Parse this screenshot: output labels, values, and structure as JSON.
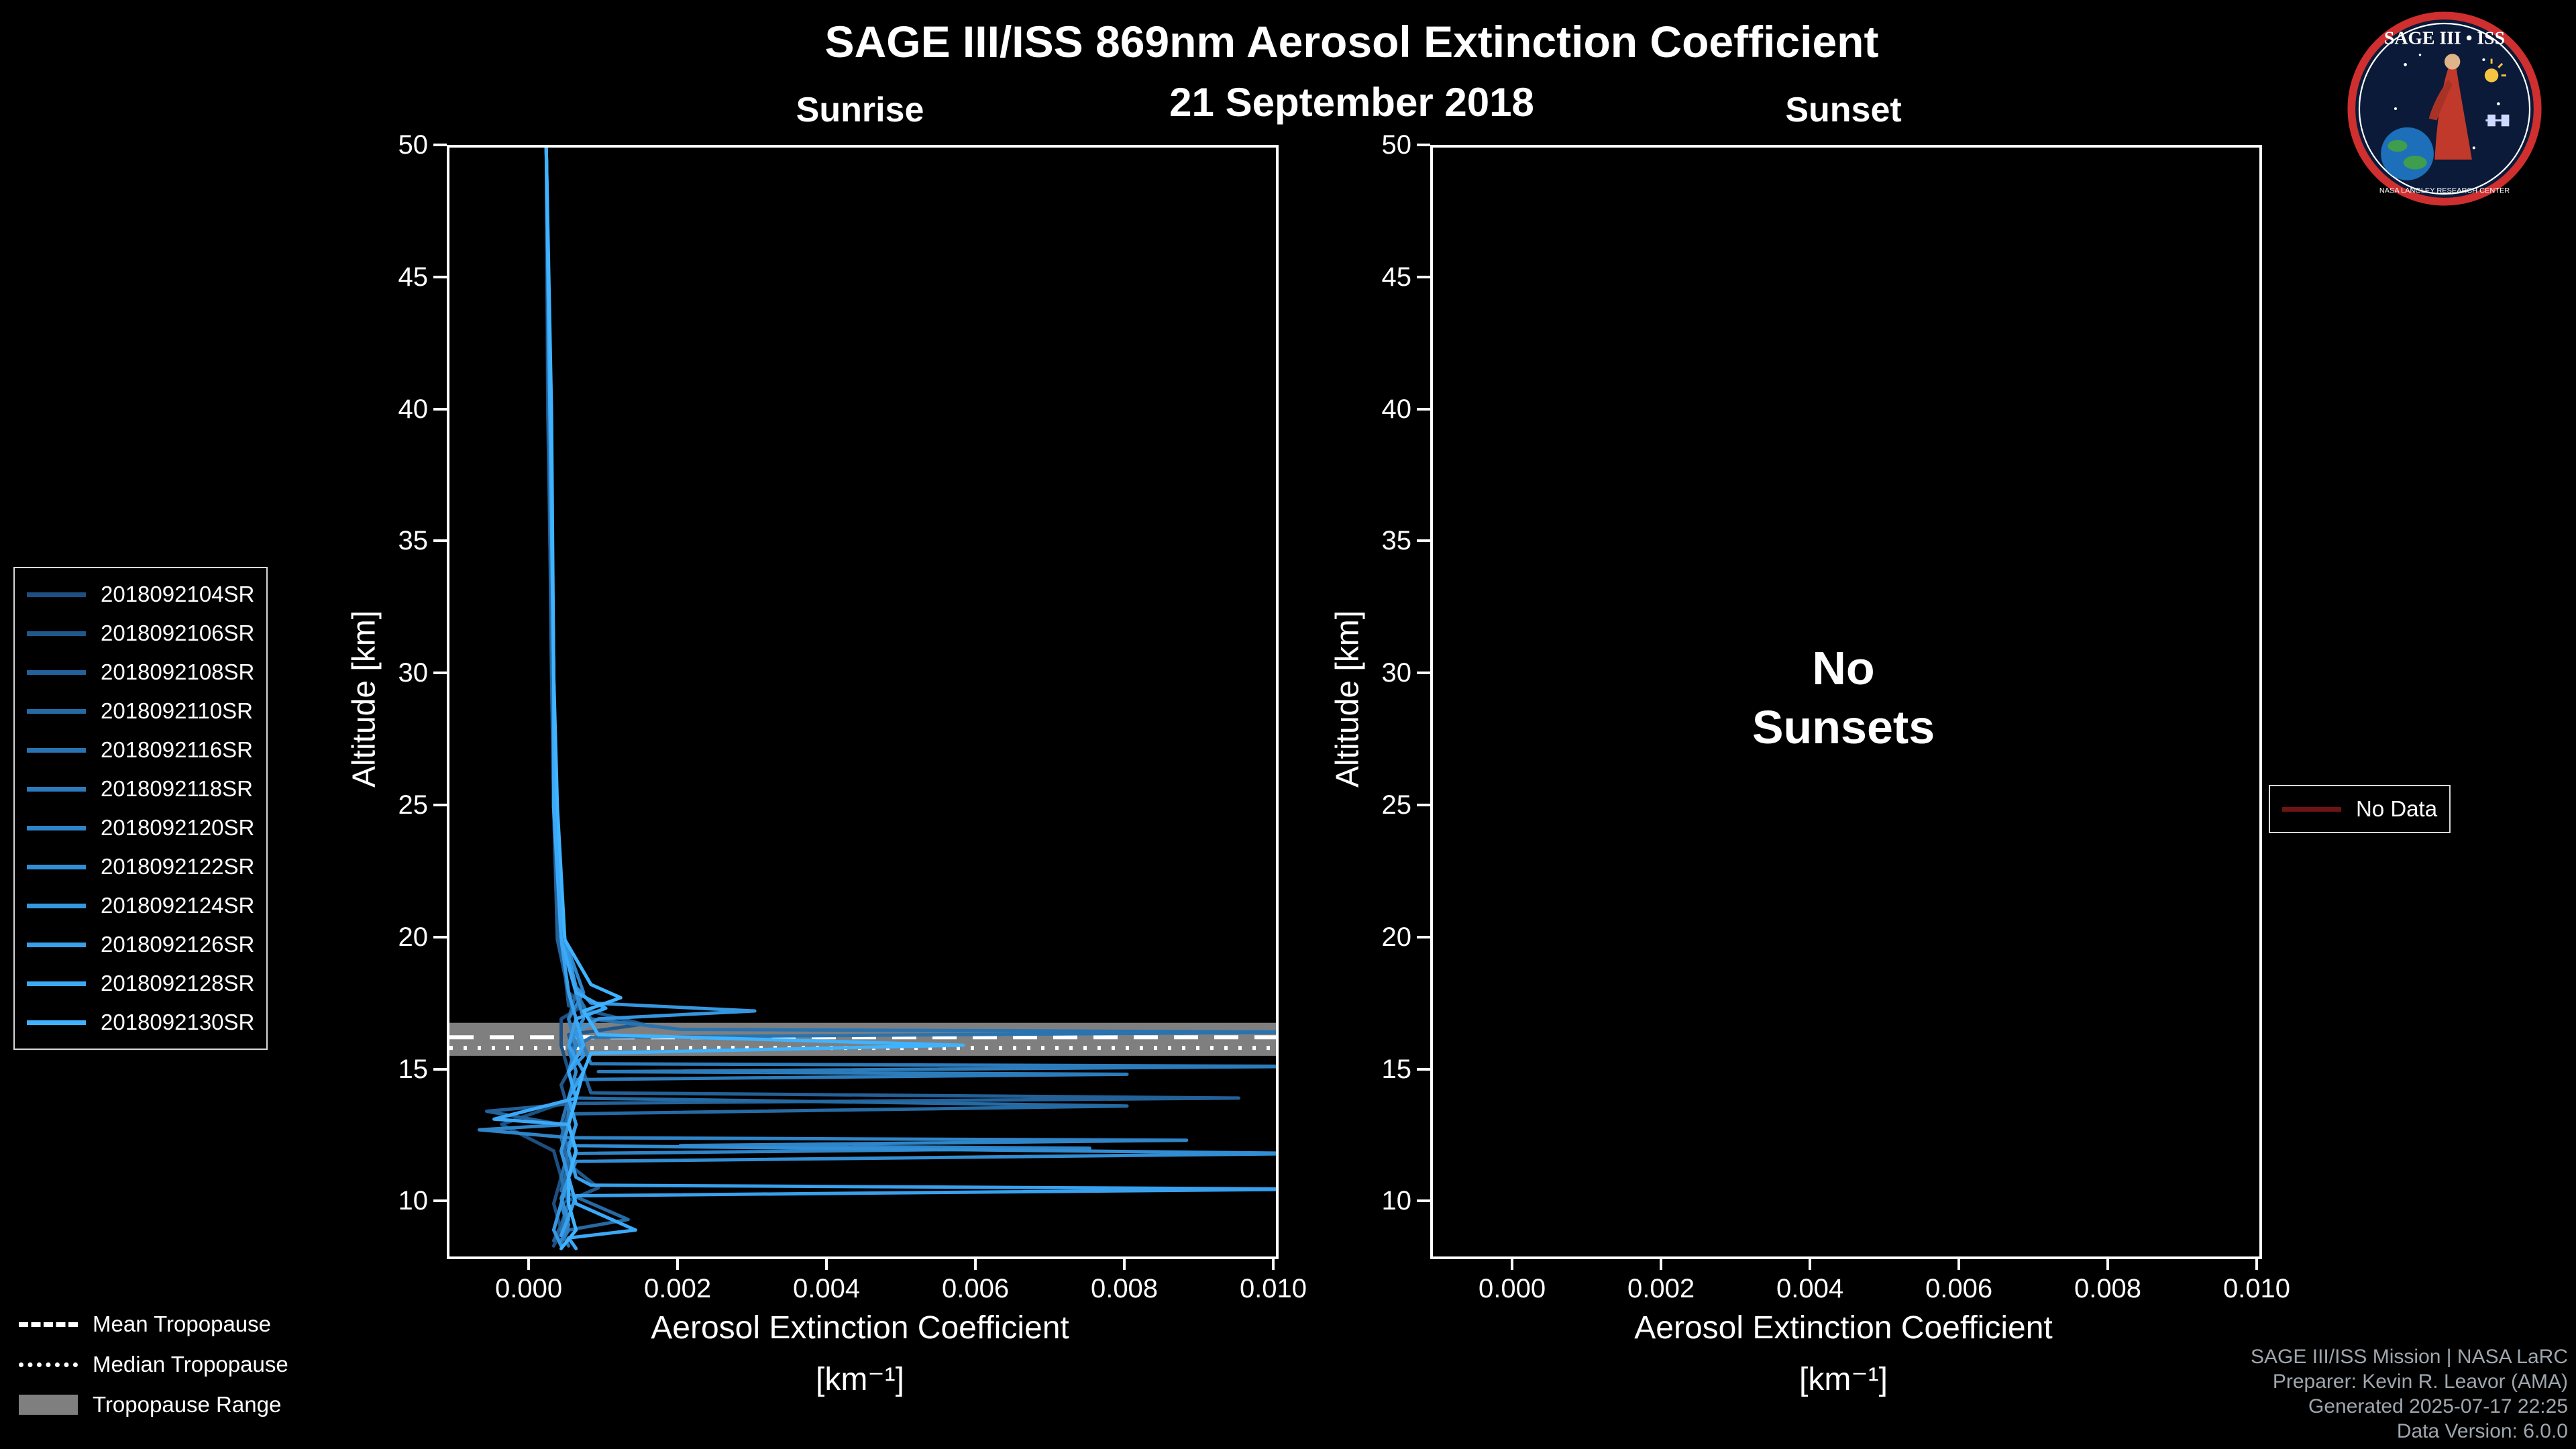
{
  "header": {
    "title": "SAGE III/ISS 869nm Aerosol Extinction Coefficient",
    "subtitle": "21 September 2018"
  },
  "chart_data": {
    "type": "line",
    "title": "SAGE III/ISS 869nm Aerosol Extinction Coefficient",
    "subtitle": "21 September 2018",
    "xlabel": "Aerosol Extinction Coefficient",
    "xlabel_units": "[km⁻¹]",
    "ylabel": "Altitude [km]",
    "xlim": [
      -0.0011,
      0.01
    ],
    "ylim": [
      8.0,
      50
    ],
    "xtick_values": [
      0.0,
      0.002,
      0.004,
      0.006,
      0.008,
      0.01
    ],
    "xtick_labels": [
      "0.000",
      "0.002",
      "0.004",
      "0.006",
      "0.008",
      "0.010"
    ],
    "ytick_values": [
      10,
      15,
      20,
      25,
      30,
      35,
      40,
      45,
      50
    ],
    "ytick_labels": [
      "10",
      "15",
      "20",
      "25",
      "30",
      "35",
      "40",
      "45",
      "50"
    ],
    "grid": false,
    "panels": [
      {
        "id": "sunrise",
        "title": "Sunrise",
        "annotation_lines": []
      },
      {
        "id": "sunset",
        "title": "Sunset",
        "annotation_lines": [
          "No",
          "Sunsets"
        ]
      }
    ],
    "tropopause": {
      "mean": 16.3,
      "median": 15.9,
      "range": [
        15.6,
        16.85
      ]
    },
    "series": [
      {
        "name": "2018092104SR",
        "color": "#1d4f80",
        "points": [
          [
            50,
            0.0002
          ],
          [
            40,
            0.00022
          ],
          [
            30,
            0.00028
          ],
          [
            25,
            0.0003
          ],
          [
            20,
            0.00035
          ],
          [
            18,
            0.0005
          ],
          [
            17.5,
            0.0007
          ],
          [
            17,
            0.0004
          ],
          [
            16,
            0.0004
          ],
          [
            15,
            0.0005
          ],
          [
            14,
            0.0006
          ],
          [
            13,
            -0.0004
          ],
          [
            12,
            0.0003
          ],
          [
            11,
            0.0004
          ],
          [
            10,
            0.0003
          ],
          [
            9,
            0.0004
          ],
          [
            8.4,
            0.0003
          ]
        ]
      },
      {
        "name": "2018092106SR",
        "color": "#20588c",
        "points": [
          [
            50,
            0.0002
          ],
          [
            40,
            0.00024
          ],
          [
            30,
            0.00028
          ],
          [
            25,
            0.0003
          ],
          [
            20,
            0.0004
          ],
          [
            17.5,
            0.0005
          ],
          [
            16.8,
            0.0015
          ],
          [
            16.4,
            0.0005
          ],
          [
            15.5,
            0.0006
          ],
          [
            14.5,
            0.0004
          ],
          [
            13.5,
            0.0005
          ],
          [
            12.5,
            0.0004
          ],
          [
            11.5,
            0.0005
          ],
          [
            10.6,
            0.0009
          ],
          [
            10,
            0.0004
          ],
          [
            9,
            0.0003
          ],
          [
            8.5,
            0.0004
          ]
        ]
      },
      {
        "name": "2018092108SR",
        "color": "#236198",
        "points": [
          [
            50,
            0.0002
          ],
          [
            40,
            0.00023
          ],
          [
            30,
            0.00027
          ],
          [
            25,
            0.0003
          ],
          [
            20,
            0.00035
          ],
          [
            18,
            0.0005
          ],
          [
            17,
            0.0006
          ],
          [
            16,
            0.0005
          ],
          [
            15,
            0.0007
          ],
          [
            14.2,
            0.0008
          ],
          [
            14.0,
            0.0095
          ],
          [
            13.8,
            0.0006
          ],
          [
            13.5,
            -0.0006
          ],
          [
            13,
            0.0004
          ],
          [
            12,
            0.0005
          ],
          [
            11,
            0.0004
          ],
          [
            10,
            0.0005
          ],
          [
            9.2,
            0.0004
          ],
          [
            8.6,
            0.0003
          ]
        ]
      },
      {
        "name": "2018092110SR",
        "color": "#266aa4",
        "points": [
          [
            50,
            0.0002
          ],
          [
            40,
            0.00024
          ],
          [
            30,
            0.00028
          ],
          [
            25,
            0.0003
          ],
          [
            20,
            0.0004
          ],
          [
            18,
            0.0006
          ],
          [
            17,
            0.0005
          ],
          [
            16,
            0.0006
          ],
          [
            15,
            0.0005
          ],
          [
            14,
            0.0006
          ],
          [
            13.7,
            0.008
          ],
          [
            13.4,
            0.0005
          ],
          [
            12.5,
            0.0004
          ],
          [
            11.5,
            0.0005
          ],
          [
            10.5,
            0.0004
          ],
          [
            9.4,
            0.0013
          ],
          [
            9.0,
            0.0005
          ],
          [
            8.5,
            0.0004
          ]
        ]
      },
      {
        "name": "2018092116SR",
        "color": "#2973b0",
        "points": [
          [
            50,
            0.0002
          ],
          [
            40,
            0.00025
          ],
          [
            30,
            0.0003
          ],
          [
            25,
            0.0003
          ],
          [
            20,
            0.0004
          ],
          [
            18,
            0.0006
          ],
          [
            17,
            0.0008
          ],
          [
            16.6,
            0.002
          ],
          [
            16.5,
            0.0105
          ],
          [
            16.3,
            0.0008
          ],
          [
            15.8,
            0.0005
          ],
          [
            15,
            0.0006
          ],
          [
            14,
            0.0005
          ],
          [
            13,
            0.0004
          ],
          [
            12,
            0.0005
          ],
          [
            11,
            0.0004
          ],
          [
            10,
            0.0005
          ],
          [
            9,
            0.0004
          ],
          [
            8.4,
            0.0005
          ]
        ]
      },
      {
        "name": "2018092118SR",
        "color": "#2c7cbc",
        "points": [
          [
            50,
            0.0002
          ],
          [
            40,
            0.00025
          ],
          [
            30,
            0.0003
          ],
          [
            25,
            0.00032
          ],
          [
            20,
            0.0004
          ],
          [
            18,
            0.0005
          ],
          [
            17,
            0.0006
          ],
          [
            16,
            0.0007
          ],
          [
            15.3,
            0.0008
          ],
          [
            15.2,
            0.0105
          ],
          [
            15.0,
            0.0009
          ],
          [
            14.9,
            0.008
          ],
          [
            14.7,
            0.0006
          ],
          [
            14,
            0.0005
          ],
          [
            13,
            0.0005
          ],
          [
            12,
            0.0004
          ],
          [
            11,
            0.0005
          ],
          [
            10,
            0.0004
          ],
          [
            9,
            0.0005
          ],
          [
            8.6,
            0.0004
          ]
        ]
      },
      {
        "name": "2018092120SR",
        "color": "#2f85c8",
        "points": [
          [
            50,
            0.0002
          ],
          [
            40,
            0.00025
          ],
          [
            30,
            0.0003
          ],
          [
            25,
            0.0003
          ],
          [
            20,
            0.00045
          ],
          [
            18,
            0.0007
          ],
          [
            17,
            0.0005
          ],
          [
            16,
            0.0006
          ],
          [
            15,
            0.0005
          ],
          [
            14,
            0.0006
          ],
          [
            13,
            0.0005
          ],
          [
            12.8,
            -0.0007
          ],
          [
            12.5,
            0.0005
          ],
          [
            12.4,
            0.0088
          ],
          [
            12.2,
            0.002
          ],
          [
            12.1,
            0.0075
          ],
          [
            11.9,
            0.0006
          ],
          [
            11,
            0.0005
          ],
          [
            10,
            0.0004
          ],
          [
            9.2,
            0.0005
          ],
          [
            8.6,
            0.0004
          ]
        ]
      },
      {
        "name": "2018092122SR",
        "color": "#328ed4",
        "points": [
          [
            50,
            0.0002
          ],
          [
            40,
            0.00026
          ],
          [
            30,
            0.0003
          ],
          [
            25,
            0.00032
          ],
          [
            20,
            0.0004
          ],
          [
            18,
            0.0006
          ],
          [
            17,
            0.0007
          ],
          [
            16,
            0.0005
          ],
          [
            15,
            0.0006
          ],
          [
            14,
            0.0005
          ],
          [
            13,
            0.0006
          ],
          [
            12.2,
            0.0005
          ],
          [
            11.9,
            0.0105
          ],
          [
            11.6,
            0.0006
          ],
          [
            11,
            0.0005
          ],
          [
            10.2,
            0.0004
          ],
          [
            9.4,
            0.0005
          ],
          [
            8.8,
            0.0004
          ]
        ]
      },
      {
        "name": "2018092124SR",
        "color": "#3597e0",
        "points": [
          [
            50,
            0.0002
          ],
          [
            40,
            0.00025
          ],
          [
            30,
            0.0003
          ],
          [
            25,
            0.0003
          ],
          [
            20,
            0.00045
          ],
          [
            18.2,
            0.0006
          ],
          [
            17.6,
            0.0008
          ],
          [
            17.3,
            0.003
          ],
          [
            17.0,
            0.0009
          ],
          [
            16.5,
            0.0006
          ],
          [
            15.6,
            0.0007
          ],
          [
            15,
            0.0005
          ],
          [
            14,
            0.0006
          ],
          [
            13,
            0.0005
          ],
          [
            12,
            0.0004
          ],
          [
            11,
            0.0005
          ],
          [
            10,
            0.0004
          ],
          [
            9,
            0.0003
          ],
          [
            8.4,
            0.0004
          ]
        ]
      },
      {
        "name": "2018092126SR",
        "color": "#38a0ec",
        "points": [
          [
            50,
            0.0002
          ],
          [
            40,
            0.00026
          ],
          [
            30,
            0.0003
          ],
          [
            25,
            0.00033
          ],
          [
            20,
            0.0004
          ],
          [
            18,
            0.0005
          ],
          [
            17,
            0.0006
          ],
          [
            16,
            0.0005
          ],
          [
            15,
            0.0007
          ],
          [
            14,
            0.0005
          ],
          [
            13,
            0.0006
          ],
          [
            12,
            0.0005
          ],
          [
            11,
            0.0006
          ],
          [
            10.7,
            0.0008
          ],
          [
            10.55,
            0.0105
          ],
          [
            10.3,
            0.0006
          ],
          [
            9.5,
            0.0005
          ],
          [
            8.8,
            0.0004
          ]
        ]
      },
      {
        "name": "2018092128SR",
        "color": "#3ba9f8",
        "points": [
          [
            50,
            0.0002
          ],
          [
            40,
            0.00025
          ],
          [
            30,
            0.0003
          ],
          [
            25,
            0.0003
          ],
          [
            20,
            0.0004
          ],
          [
            18,
            0.0006
          ],
          [
            17.4,
            0.001
          ],
          [
            17,
            0.0006
          ],
          [
            16,
            0.0007
          ],
          [
            15,
            0.0005
          ],
          [
            14,
            0.0006
          ],
          [
            13.2,
            -0.0005
          ],
          [
            13,
            0.0005
          ],
          [
            12,
            0.0006
          ],
          [
            11,
            0.0005
          ],
          [
            10,
            0.0006
          ],
          [
            9.0,
            0.0014
          ],
          [
            8.7,
            0.0005
          ],
          [
            8.3,
            0.0006
          ]
        ]
      },
      {
        "name": "2018092130SR",
        "color": "#3fb3ff",
        "points": [
          [
            50,
            0.0002
          ],
          [
            40,
            0.00027
          ],
          [
            30,
            0.0003
          ],
          [
            25,
            0.00035
          ],
          [
            20,
            0.00045
          ],
          [
            18.3,
            0.0008
          ],
          [
            17.8,
            0.0012
          ],
          [
            17.3,
            0.0007
          ],
          [
            16.4,
            0.0009
          ],
          [
            16.0,
            0.0058
          ],
          [
            15.7,
            0.0008
          ],
          [
            15,
            0.0007
          ],
          [
            14,
            0.0006
          ],
          [
            13,
            0.0005
          ],
          [
            12,
            0.0006
          ],
          [
            11,
            0.0005
          ],
          [
            10,
            0.0005
          ],
          [
            9,
            0.0006
          ],
          [
            8.3,
            0.0004
          ]
        ]
      }
    ]
  },
  "legends": {
    "tropopause": {
      "items": [
        {
          "label": "Mean Tropopause",
          "swatch": "dashed"
        },
        {
          "label": "Median Tropopause",
          "swatch": "dotted"
        },
        {
          "label": "Tropopause Range",
          "swatch": "patch"
        }
      ]
    },
    "no_data": {
      "label": "No Data",
      "color": "#6e1414"
    }
  },
  "credits": {
    "lines": [
      "SAGE III/ISS Mission | NASA LaRC",
      "Preparer: Kevin R. Leavor (AMA)",
      "Generated 2025-07-17 22:25",
      "Data Version: 6.0.0"
    ]
  },
  "logo": {
    "title": "SAGE III • ISS",
    "ring_text": "NASA LANGLEY RESEARCH CENTER"
  }
}
